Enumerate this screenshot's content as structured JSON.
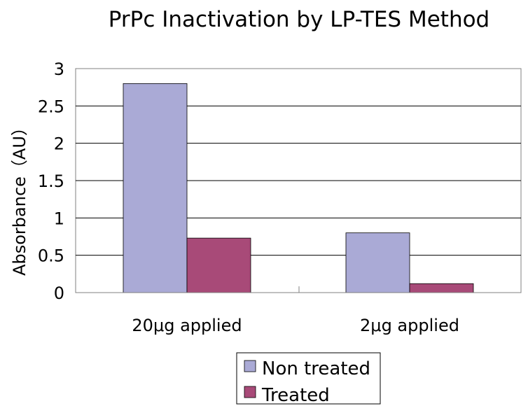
{
  "chart_data": {
    "type": "bar",
    "title": "PrPc Inactivation by LP-TES Method",
    "ylabel": "Absorbance（AU）",
    "xlabel": "",
    "categories": [
      "20μg applied",
      "2μg applied"
    ],
    "series": [
      {
        "name": "Non treated",
        "values": [
          2.8,
          0.8
        ]
      },
      {
        "name": "Treated",
        "values": [
          0.73,
          0.12
        ]
      }
    ],
    "ylim": [
      0,
      3
    ],
    "yticks": [
      0,
      0.5,
      1,
      1.5,
      2,
      2.5,
      3
    ],
    "ytick_labels": [
      "0",
      "0.5",
      "1",
      "1.5",
      "2",
      "2.5",
      "3"
    ],
    "grid": true,
    "legend_position": "bottom"
  },
  "colors": {
    "Non treated": "#aaaad6",
    "Treated": "#a84a78",
    "grid": "#000000",
    "frame": "#808080"
  }
}
